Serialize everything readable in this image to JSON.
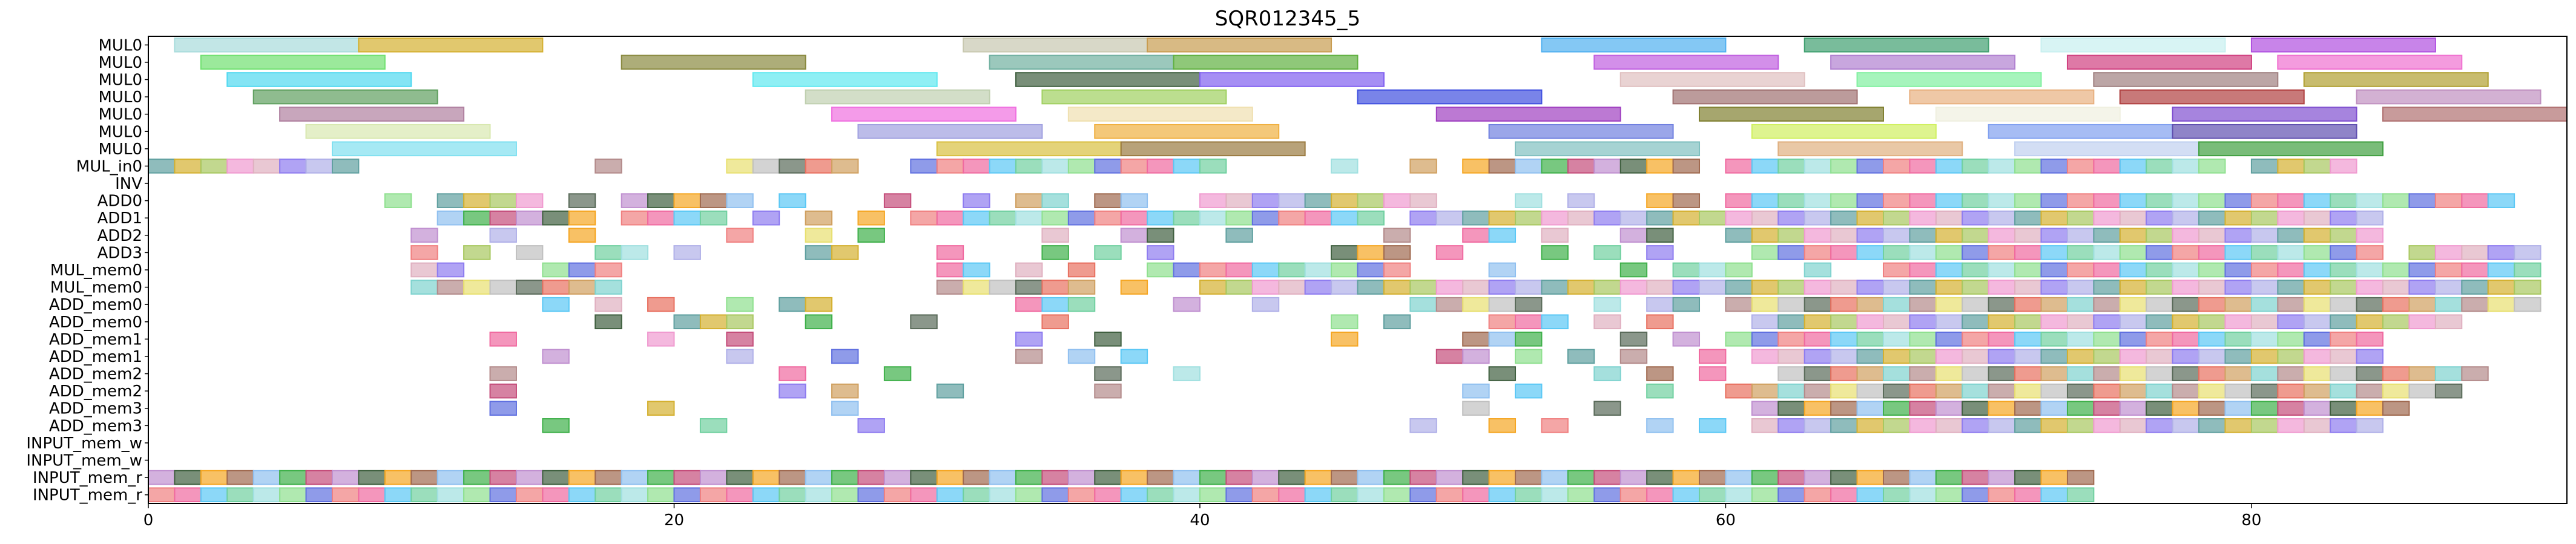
{
  "chart_data": {
    "type": "gantt",
    "title": "SQR012345_5",
    "xlabel": "",
    "ylabel": "",
    "xlim": [
      0,
      92
    ],
    "x_ticks": [
      0,
      20,
      40,
      60,
      80
    ],
    "grid": false,
    "rows": [
      "MUL0",
      "MUL0",
      "MUL0",
      "MUL0",
      "MUL0",
      "MUL0",
      "MUL0",
      "MUL_in0",
      "INV",
      "ADD0",
      "ADD1",
      "ADD2",
      "ADD3",
      "MUL_mem0",
      "MUL_mem0",
      "ADD_mem0",
      "ADD_mem0",
      "ADD_mem1",
      "ADD_mem1",
      "ADD_mem2",
      "ADD_mem2",
      "ADD_mem3",
      "ADD_mem3",
      "INPUT_mem_w",
      "INPUT_mem_w",
      "INPUT_mem_r",
      "INPUT_mem_r"
    ],
    "palette": [
      "#7fd3cf",
      "#d4b030",
      "#f06aa0",
      "#3fb04a",
      "#5a6b5a",
      "#8e7cf0",
      "#8fe08f",
      "#f5a623",
      "#b38a8a",
      "#a8c860",
      "#5bc8f5",
      "#c44d7a",
      "#e87060",
      "#b0b0e8",
      "#6070e0",
      "#a06a50",
      "#e8e070",
      "#f09ad0",
      "#70d0a0",
      "#c090d0",
      "#d0a060",
      "#60a0a0",
      "#f08080",
      "#90c0f0",
      "#c0c0c0",
      "#e0b0c0",
      "#a0e0e0",
      "#406040"
    ],
    "bars": [
      {
        "row": 0,
        "start": 1,
        "end": 8,
        "color": "#a8dcdc"
      },
      {
        "row": 0,
        "start": 8,
        "end": 15,
        "color": "#d4b030"
      },
      {
        "row": 0,
        "start": 31,
        "end": 38,
        "color": "#c8c8b0"
      },
      {
        "row": 0,
        "start": 38,
        "end": 45,
        "color": "#c89c50"
      },
      {
        "row": 0,
        "start": 53,
        "end": 60,
        "color": "#50b0f0"
      },
      {
        "row": 0,
        "start": 63,
        "end": 70,
        "color": "#40a070"
      },
      {
        "row": 0,
        "start": 72,
        "end": 79,
        "color": "#c8f0f0"
      },
      {
        "row": 0,
        "start": 80,
        "end": 87,
        "color": "#b050e0"
      },
      {
        "row": 1,
        "start": 2,
        "end": 9,
        "color": "#70e070"
      },
      {
        "row": 1,
        "start": 18,
        "end": 25,
        "color": "#8a8a40"
      },
      {
        "row": 1,
        "start": 32,
        "end": 39,
        "color": "#70b0a0"
      },
      {
        "row": 1,
        "start": 39,
        "end": 46,
        "color": "#60b040"
      },
      {
        "row": 1,
        "start": 55,
        "end": 62,
        "color": "#c060e0"
      },
      {
        "row": 1,
        "start": 64,
        "end": 71,
        "color": "#b080d0"
      },
      {
        "row": 1,
        "start": 73,
        "end": 80,
        "color": "#d04080"
      },
      {
        "row": 1,
        "start": 81,
        "end": 88,
        "color": "#f070d0"
      },
      {
        "row": 2,
        "start": 3,
        "end": 10,
        "color": "#50d8f0"
      },
      {
        "row": 2,
        "start": 23,
        "end": 30,
        "color": "#60e8f0"
      },
      {
        "row": 2,
        "start": 33,
        "end": 40,
        "color": "#406040"
      },
      {
        "row": 2,
        "start": 40,
        "end": 47,
        "color": "#8060f0"
      },
      {
        "row": 2,
        "start": 56,
        "end": 63,
        "color": "#e0c0c0"
      },
      {
        "row": 2,
        "start": 65,
        "end": 72,
        "color": "#80f0a0"
      },
      {
        "row": 2,
        "start": 74,
        "end": 81,
        "color": "#a08080"
      },
      {
        "row": 2,
        "start": 82,
        "end": 89,
        "color": "#b0a030"
      },
      {
        "row": 3,
        "start": 4,
        "end": 11,
        "color": "#60a060"
      },
      {
        "row": 3,
        "start": 25,
        "end": 32,
        "color": "#c0d0b0"
      },
      {
        "row": 3,
        "start": 34,
        "end": 41,
        "color": "#a0d060"
      },
      {
        "row": 3,
        "start": 46,
        "end": 53,
        "color": "#4050e0"
      },
      {
        "row": 3,
        "start": 58,
        "end": 65,
        "color": "#a07070"
      },
      {
        "row": 3,
        "start": 67,
        "end": 74,
        "color": "#e8b080"
      },
      {
        "row": 3,
        "start": 75,
        "end": 82,
        "color": "#b04040"
      },
      {
        "row": 3,
        "start": 84,
        "end": 91,
        "color": "#c090c0"
      },
      {
        "row": 4,
        "start": 5,
        "end": 12,
        "color": "#b080a0"
      },
      {
        "row": 4,
        "start": 26,
        "end": 33,
        "color": "#f070e0"
      },
      {
        "row": 4,
        "start": 35,
        "end": 42,
        "color": "#f0e0b0"
      },
      {
        "row": 4,
        "start": 49,
        "end": 56,
        "color": "#a040c0"
      },
      {
        "row": 4,
        "start": 59,
        "end": 66,
        "color": "#808030"
      },
      {
        "row": 4,
        "start": 68,
        "end": 75,
        "color": "#f0f0e0"
      },
      {
        "row": 4,
        "start": 77,
        "end": 84,
        "color": "#8050d0"
      },
      {
        "row": 4,
        "start": 85,
        "end": 92,
        "color": "#b07070"
      },
      {
        "row": 5,
        "start": 6,
        "end": 13,
        "color": "#d8e8b0"
      },
      {
        "row": 5,
        "start": 27,
        "end": 34,
        "color": "#a0a0e0"
      },
      {
        "row": 5,
        "start": 36,
        "end": 43,
        "color": "#f0b040"
      },
      {
        "row": 5,
        "start": 51,
        "end": 58,
        "color": "#7080e0"
      },
      {
        "row": 5,
        "start": 61,
        "end": 68,
        "color": "#d0f060"
      },
      {
        "row": 5,
        "start": 70,
        "end": 77,
        "color": "#80a0f0"
      },
      {
        "row": 5,
        "start": 77,
        "end": 84,
        "color": "#6050b0"
      },
      {
        "row": 6,
        "start": 7,
        "end": 14,
        "color": "#80e0f0"
      },
      {
        "row": 6,
        "start": 30,
        "end": 37,
        "color": "#d8c040"
      },
      {
        "row": 6,
        "start": 37,
        "end": 44,
        "color": "#9a7a40"
      },
      {
        "row": 6,
        "start": 52,
        "end": 59,
        "color": "#80c0c0"
      },
      {
        "row": 6,
        "start": 62,
        "end": 69,
        "color": "#e0b080"
      },
      {
        "row": 6,
        "start": 71,
        "end": 78,
        "color": "#c0d0f0"
      },
      {
        "row": 6,
        "start": 78,
        "end": 85,
        "color": "#40a040"
      }
    ],
    "cell_rows": [
      {
        "row": 7,
        "cells": [
          0,
          1,
          2,
          3,
          4,
          5,
          6,
          7,
          17,
          22,
          23,
          24,
          25,
          26,
          29,
          30,
          31,
          32,
          33,
          34,
          35,
          36,
          37,
          38,
          39,
          40,
          45,
          48,
          50,
          51,
          52,
          53,
          54,
          55,
          56,
          57,
          58,
          60,
          61,
          62,
          63,
          64,
          65,
          66,
          67,
          68,
          69,
          70,
          71,
          72,
          73,
          74,
          75,
          76,
          77,
          78,
          80,
          81,
          82,
          83
        ]
      },
      {
        "row": 9,
        "cells": [
          9,
          11,
          12,
          13,
          14,
          16,
          18,
          19,
          20,
          21,
          22,
          24,
          28,
          31,
          33,
          34,
          36,
          37,
          40,
          41,
          42,
          43,
          44,
          45,
          46,
          47,
          48,
          52,
          54,
          57,
          58,
          60,
          61,
          62,
          63,
          64,
          65,
          66,
          67,
          68,
          69,
          70,
          71,
          72,
          73,
          74,
          75,
          76,
          77,
          78,
          79,
          80,
          81,
          82,
          83,
          84,
          85,
          86,
          87,
          88,
          89
        ]
      },
      {
        "row": 10,
        "cells": [
          11,
          12,
          13,
          14,
          15,
          16,
          18,
          19,
          20,
          21,
          23,
          25,
          27,
          29,
          30,
          31,
          32,
          33,
          34,
          35,
          36,
          37,
          38,
          39,
          40,
          41,
          42,
          43,
          44,
          45,
          46,
          48,
          49,
          50,
          51,
          52,
          53,
          54,
          55,
          56,
          57,
          58,
          59,
          60,
          61,
          62,
          63,
          64,
          65,
          66,
          67,
          68,
          69,
          70,
          71,
          72,
          73,
          74,
          75,
          76,
          77,
          78,
          79,
          80,
          81,
          82,
          83,
          84
        ]
      },
      {
        "row": 11,
        "cells": [
          10,
          13,
          16,
          22,
          25,
          27,
          34,
          37,
          38,
          41,
          47,
          50,
          51,
          53,
          56,
          57,
          60,
          61,
          62,
          63,
          64,
          65,
          66,
          67,
          68,
          69,
          70,
          71,
          72,
          73,
          74,
          75,
          76,
          77,
          78,
          79,
          80,
          81,
          82,
          83,
          84
        ]
      },
      {
        "row": 12,
        "cells": [
          10,
          12,
          14,
          17,
          18,
          20,
          25,
          26,
          30,
          34,
          36,
          38,
          45,
          46,
          47,
          49,
          53,
          55,
          57,
          61,
          62,
          63,
          64,
          65,
          66,
          67,
          68,
          69,
          70,
          71,
          72,
          73,
          74,
          75,
          76,
          77,
          78,
          79,
          80,
          81,
          82,
          83,
          84,
          86,
          87,
          88,
          89,
          90
        ]
      },
      {
        "row": 13,
        "cells": [
          10,
          11,
          15,
          16,
          17,
          30,
          31,
          33,
          35,
          38,
          39,
          40,
          41,
          42,
          43,
          44,
          45,
          46,
          47,
          51,
          56,
          58,
          59,
          60,
          63,
          66,
          67,
          68,
          69,
          70,
          71,
          72,
          73,
          74,
          75,
          76,
          77,
          78,
          79,
          80,
          81,
          82,
          83,
          84,
          85,
          86,
          87,
          88,
          89,
          90
        ]
      },
      {
        "row": 14,
        "cells": [
          10,
          11,
          12,
          13,
          14,
          15,
          16,
          17,
          30,
          31,
          32,
          33,
          34,
          35,
          37,
          40,
          41,
          42,
          43,
          44,
          45,
          46,
          47,
          48,
          49,
          50,
          51,
          52,
          53,
          54,
          55,
          56,
          57,
          58,
          59,
          60,
          61,
          62,
          63,
          64,
          65,
          66,
          67,
          68,
          69,
          70,
          71,
          72,
          73,
          74,
          75,
          76,
          77,
          78,
          79,
          80,
          81,
          82,
          83,
          84,
          85,
          86,
          87,
          88,
          89,
          90
        ]
      },
      {
        "row": 15,
        "cells": [
          15,
          17,
          19,
          22,
          24,
          25,
          33,
          34,
          35,
          39,
          42,
          48,
          49,
          50,
          51,
          52,
          55,
          57,
          58,
          60,
          61,
          62,
          63,
          64,
          65,
          66,
          67,
          68,
          69,
          70,
          71,
          72,
          73,
          74,
          75,
          76,
          77,
          78,
          79,
          80,
          81,
          82,
          83,
          84,
          85,
          86,
          87,
          88,
          89,
          90
        ]
      },
      {
        "row": 16,
        "cells": [
          17,
          20,
          21,
          22,
          25,
          29,
          34,
          45,
          47,
          51,
          52,
          53,
          55,
          57,
          61,
          62,
          63,
          64,
          65,
          66,
          67,
          68,
          69,
          70,
          71,
          72,
          73,
          74,
          75,
          76,
          77,
          78,
          79,
          80,
          81,
          82,
          83,
          84,
          85,
          86,
          87
        ]
      },
      {
        "row": 17,
        "cells": [
          13,
          19,
          22,
          33,
          36,
          45,
          50,
          51,
          52,
          56,
          58,
          60,
          61,
          62,
          63,
          64,
          65,
          66,
          67,
          68,
          69,
          70,
          71,
          72,
          73,
          74,
          75,
          76,
          77,
          78,
          79,
          80,
          81,
          82,
          83,
          84
        ]
      },
      {
        "row": 18,
        "cells": [
          15,
          22,
          26,
          33,
          35,
          37,
          49,
          50,
          52,
          54,
          56,
          59,
          61,
          62,
          63,
          64,
          65,
          66,
          67,
          68,
          69,
          70,
          71,
          72,
          73,
          74,
          75,
          76,
          77,
          78,
          79,
          80,
          81,
          82,
          83,
          84
        ]
      },
      {
        "row": 19,
        "cells": [
          13,
          24,
          28,
          36,
          39,
          51,
          55,
          57,
          59,
          62,
          63,
          64,
          65,
          66,
          67,
          68,
          69,
          70,
          71,
          72,
          73,
          74,
          75,
          76,
          77,
          78,
          79,
          80,
          81,
          82,
          83,
          84,
          85,
          86,
          87,
          88
        ]
      },
      {
        "row": 20,
        "cells": [
          13,
          24,
          26,
          30,
          36,
          50,
          52,
          57,
          60,
          61,
          62,
          63,
          64,
          65,
          66,
          67,
          68,
          69,
          70,
          71,
          72,
          73,
          74,
          75,
          76,
          77,
          78,
          79,
          80,
          81,
          82,
          83,
          84,
          85,
          86,
          87
        ]
      },
      {
        "row": 21,
        "cells": [
          13,
          19,
          26,
          50,
          55,
          61,
          62,
          63,
          64,
          65,
          66,
          67,
          68,
          69,
          70,
          71,
          72,
          73,
          74,
          75,
          76,
          77,
          78,
          79,
          80,
          81,
          82,
          83,
          84,
          85
        ]
      },
      {
        "row": 22,
        "cells": [
          15,
          21,
          27,
          48,
          51,
          53,
          57,
          59,
          61,
          62,
          63,
          64,
          65,
          66,
          67,
          68,
          69,
          70,
          71,
          72,
          73,
          74,
          75,
          76,
          77,
          78,
          79,
          80,
          81,
          82,
          83,
          84
        ]
      },
      {
        "row": 25,
        "cells": [
          0,
          1,
          2,
          3,
          4,
          5,
          6,
          7,
          8,
          9,
          10,
          11,
          12,
          13,
          14,
          15,
          16,
          17,
          18,
          19,
          20,
          21,
          22,
          23,
          24,
          25,
          26,
          27,
          28,
          29,
          30,
          31,
          32,
          33,
          34,
          35,
          36,
          37,
          38,
          39,
          40,
          41,
          42,
          43,
          44,
          45,
          46,
          47,
          48,
          49,
          50,
          51,
          52,
          53,
          54,
          55,
          56,
          57,
          58,
          59,
          60,
          61,
          62,
          63,
          64,
          65,
          66,
          67,
          68,
          69,
          70,
          71,
          72,
          73
        ]
      },
      {
        "row": 26,
        "cells": [
          0,
          1,
          2,
          3,
          4,
          5,
          6,
          7,
          8,
          9,
          10,
          11,
          12,
          13,
          14,
          15,
          16,
          17,
          18,
          19,
          20,
          21,
          22,
          23,
          24,
          25,
          26,
          27,
          28,
          29,
          30,
          31,
          32,
          33,
          34,
          35,
          36,
          37,
          38,
          39,
          40,
          41,
          42,
          43,
          44,
          45,
          46,
          47,
          48,
          49,
          50,
          51,
          52,
          53,
          54,
          55,
          56,
          57,
          58,
          59,
          60,
          61,
          62,
          63,
          64,
          65,
          66,
          67,
          68,
          69,
          70,
          71,
          72,
          73
        ]
      }
    ]
  }
}
